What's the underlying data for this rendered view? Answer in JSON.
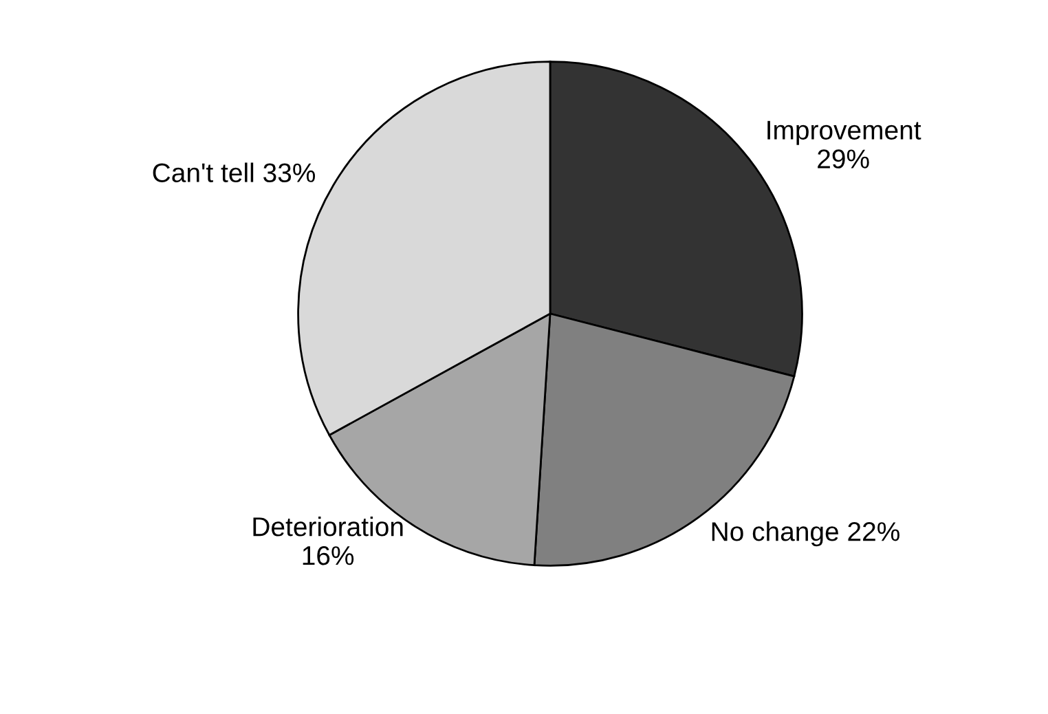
{
  "chart_data": {
    "type": "pie",
    "categories": [
      "Improvement",
      "No change",
      "Deterioration",
      "Can't tell"
    ],
    "values": [
      29,
      22,
      16,
      33
    ],
    "value_labels": [
      "29%",
      "22%",
      "16%",
      "33%"
    ],
    "colors": [
      "#333333",
      "#808080",
      "#a6a6a6",
      "#d9d9d9"
    ]
  }
}
